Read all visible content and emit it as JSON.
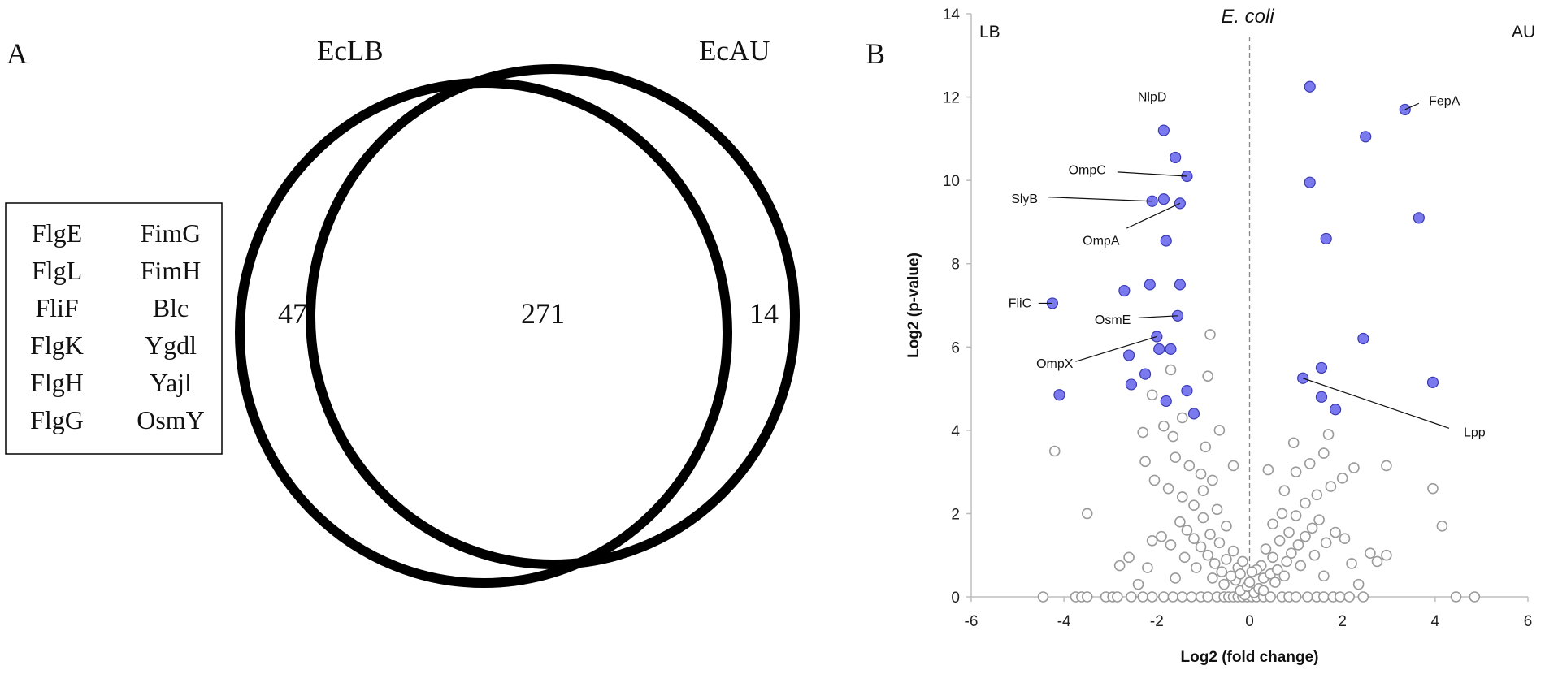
{
  "panel_a": {
    "label": "A",
    "set_left_label": "EcLB",
    "set_right_label": "EcAU",
    "count_left_only": "47",
    "count_both": "271",
    "count_right_only": "14",
    "gene_list": [
      [
        "FlgE",
        "FimG"
      ],
      [
        "FlgL",
        "FimH"
      ],
      [
        "FliF",
        "Blc"
      ],
      [
        "FlgK",
        "Ygdl"
      ],
      [
        "FlgH",
        "Yajl"
      ],
      [
        "FlgG",
        "OsmY"
      ]
    ]
  },
  "panel_b": {
    "label": "B",
    "title": "E. coli",
    "corner_left": "LB",
    "corner_right": "AU"
  },
  "chart_data": {
    "type": "scatter",
    "title": "E. coli",
    "xlabel": "Log2 (fold change)",
    "ylabel": "Log2 (p-value)",
    "xlim": [
      -6,
      6
    ],
    "ylim": [
      0,
      14
    ],
    "xticks": [
      -6,
      -4,
      -2,
      0,
      2,
      4,
      6
    ],
    "yticks": [
      0,
      2,
      4,
      6,
      8,
      10,
      12,
      14
    ],
    "zero_line": "dashed vertical at x = 0",
    "colors": {
      "significant": "#7a7aee",
      "not_significant": "#9a9a9a"
    },
    "series": [
      {
        "points": [
          [
            -1.85,
            11.2
          ],
          [
            -1.6,
            10.55
          ],
          [
            -1.35,
            10.1
          ],
          [
            -2.1,
            9.5
          ],
          [
            -1.5,
            9.45
          ],
          [
            -1.85,
            9.55
          ],
          [
            -1.8,
            8.55
          ],
          [
            -2.15,
            7.5
          ],
          [
            -2.7,
            7.35
          ],
          [
            -1.5,
            7.5
          ],
          [
            -4.25,
            7.05
          ],
          [
            -1.55,
            6.75
          ],
          [
            -2.0,
            6.25
          ],
          [
            -1.95,
            5.95
          ],
          [
            -1.7,
            5.95
          ],
          [
            -2.6,
            5.8
          ],
          [
            -2.25,
            5.35
          ],
          [
            -2.55,
            5.1
          ],
          [
            -1.35,
            4.95
          ],
          [
            -1.8,
            4.7
          ],
          [
            -4.1,
            4.85
          ],
          [
            -1.2,
            4.4
          ],
          [
            1.3,
            12.25
          ],
          [
            3.35,
            11.7
          ],
          [
            2.5,
            11.05
          ],
          [
            1.3,
            9.95
          ],
          [
            3.65,
            9.1
          ],
          [
            1.65,
            8.6
          ],
          [
            2.45,
            6.2
          ],
          [
            1.55,
            5.5
          ],
          [
            1.15,
            5.25
          ],
          [
            3.95,
            5.15
          ],
          [
            1.55,
            4.8
          ],
          [
            1.85,
            4.5
          ]
        ]
      },
      {
        "points": [
          [
            -4.45,
            0
          ],
          [
            -3.75,
            0
          ],
          [
            -3.62,
            0
          ],
          [
            -3.5,
            0
          ],
          [
            -3.1,
            0
          ],
          [
            -2.95,
            0
          ],
          [
            -2.85,
            0
          ],
          [
            -2.55,
            0
          ],
          [
            -2.3,
            0
          ],
          [
            -2.1,
            0
          ],
          [
            -1.85,
            0
          ],
          [
            -1.65,
            0
          ],
          [
            -1.45,
            0
          ],
          [
            -1.25,
            0
          ],
          [
            -1.05,
            0
          ],
          [
            -0.9,
            0
          ],
          [
            -0.7,
            0
          ],
          [
            -0.55,
            0
          ],
          [
            -0.45,
            0
          ],
          [
            -0.35,
            0
          ],
          [
            -0.25,
            0
          ],
          [
            -0.15,
            0
          ],
          [
            -0.05,
            0
          ],
          [
            0.05,
            0
          ],
          [
            0.15,
            0
          ],
          [
            0.3,
            0
          ],
          [
            0.45,
            0
          ],
          [
            0.7,
            0
          ],
          [
            0.85,
            0
          ],
          [
            1.0,
            0
          ],
          [
            1.25,
            0
          ],
          [
            1.45,
            0
          ],
          [
            1.6,
            0
          ],
          [
            1.8,
            0
          ],
          [
            1.95,
            0
          ],
          [
            2.15,
            0
          ],
          [
            2.45,
            0
          ],
          [
            4.45,
            0
          ],
          [
            4.85,
            0
          ],
          [
            -0.1,
            0.05
          ],
          [
            0.1,
            0.1
          ],
          [
            -0.2,
            0.15
          ],
          [
            0.2,
            0.2
          ],
          [
            -0.05,
            0.25
          ],
          [
            0.0,
            0.35
          ],
          [
            -0.3,
            0.4
          ],
          [
            0.3,
            0.45
          ],
          [
            -0.4,
            0.5
          ],
          [
            0.45,
            0.55
          ],
          [
            -0.6,
            0.6
          ],
          [
            0.6,
            0.65
          ],
          [
            -0.25,
            0.7
          ],
          [
            0.25,
            0.75
          ],
          [
            -0.75,
            0.8
          ],
          [
            0.8,
            0.85
          ],
          [
            -0.5,
            0.9
          ],
          [
            0.5,
            0.95
          ],
          [
            -0.9,
            1.0
          ],
          [
            0.9,
            1.05
          ],
          [
            -0.35,
            1.1
          ],
          [
            0.35,
            1.15
          ],
          [
            -1.05,
            1.2
          ],
          [
            1.05,
            1.25
          ],
          [
            -0.65,
            1.3
          ],
          [
            0.65,
            1.35
          ],
          [
            -1.2,
            1.4
          ],
          [
            1.2,
            1.45
          ],
          [
            -0.85,
            1.5
          ],
          [
            0.85,
            1.55
          ],
          [
            -1.35,
            1.6
          ],
          [
            1.35,
            1.65
          ],
          [
            -0.5,
            1.7
          ],
          [
            0.5,
            1.75
          ],
          [
            -1.5,
            1.8
          ],
          [
            1.5,
            1.85
          ],
          [
            -1.0,
            1.9
          ],
          [
            1.0,
            1.95
          ],
          [
            -0.2,
            0.55
          ],
          [
            0.15,
            0.65
          ],
          [
            -0.55,
            0.3
          ],
          [
            0.55,
            0.35
          ],
          [
            -0.8,
            0.45
          ],
          [
            0.75,
            0.5
          ],
          [
            -1.15,
            0.7
          ],
          [
            1.1,
            0.75
          ],
          [
            -1.4,
            0.95
          ],
          [
            1.4,
            1.0
          ],
          [
            -1.7,
            1.25
          ],
          [
            1.65,
            1.3
          ],
          [
            -1.9,
            1.45
          ],
          [
            1.85,
            1.55
          ],
          [
            -2.1,
            1.35
          ],
          [
            2.05,
            1.4
          ],
          [
            -2.2,
            0.7
          ],
          [
            2.2,
            0.8
          ],
          [
            -2.6,
            0.95
          ],
          [
            2.6,
            1.05
          ],
          [
            -2.8,
            0.75
          ],
          [
            2.75,
            0.85
          ],
          [
            -1.6,
            0.45
          ],
          [
            1.6,
            0.5
          ],
          [
            -2.4,
            0.3
          ],
          [
            2.35,
            0.3
          ],
          [
            -1.2,
            2.2
          ],
          [
            1.2,
            2.25
          ],
          [
            -1.45,
            2.4
          ],
          [
            1.45,
            2.45
          ],
          [
            -1.75,
            2.6
          ],
          [
            1.75,
            2.65
          ],
          [
            -2.05,
            2.8
          ],
          [
            2.0,
            2.85
          ],
          [
            -1.05,
            2.95
          ],
          [
            1.0,
            3.0
          ],
          [
            -1.3,
            3.15
          ],
          [
            1.3,
            3.2
          ],
          [
            -1.6,
            3.35
          ],
          [
            1.6,
            3.45
          ],
          [
            -2.25,
            3.25
          ],
          [
            2.25,
            3.1
          ],
          [
            -0.95,
            3.6
          ],
          [
            0.95,
            3.7
          ],
          [
            -1.65,
            3.85
          ],
          [
            1.7,
            3.9
          ],
          [
            -0.65,
            4.0
          ],
          [
            -1.85,
            4.1
          ],
          [
            -2.3,
            3.95
          ],
          [
            -1.45,
            4.3
          ],
          [
            -0.8,
            2.8
          ],
          [
            0.75,
            2.55
          ],
          [
            -0.35,
            3.15
          ],
          [
            0.4,
            3.05
          ],
          [
            -3.5,
            2.0
          ],
          [
            3.95,
            2.6
          ],
          [
            -4.2,
            3.5
          ],
          [
            4.15,
            1.7
          ],
          [
            2.95,
            1.0
          ],
          [
            2.95,
            3.15
          ],
          [
            -1.7,
            5.45
          ],
          [
            -0.9,
            5.3
          ],
          [
            -0.85,
            6.3
          ],
          [
            -2.1,
            4.85
          ],
          [
            0.3,
            0.15
          ],
          [
            -0.15,
            0.85
          ],
          [
            0.05,
            0.6
          ],
          [
            -0.7,
            2.1
          ],
          [
            0.7,
            2.0
          ],
          [
            -1.0,
            2.55
          ]
        ]
      }
    ],
    "annotations": [
      {
        "text": "NlpD"
      },
      {
        "text": "OmpC"
      },
      {
        "text": "SlyB"
      },
      {
        "text": "OmpA"
      },
      {
        "text": "FliC"
      },
      {
        "text": "OsmE"
      },
      {
        "text": "OmpX"
      },
      {
        "text": "FepA"
      },
      {
        "text": "Lpp"
      }
    ]
  }
}
